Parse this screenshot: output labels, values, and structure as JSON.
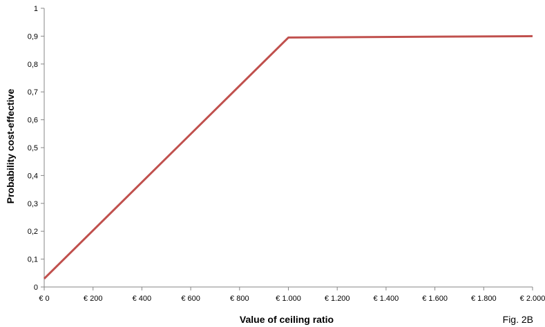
{
  "chart_data": {
    "type": "line",
    "xlabel": "Value of ceiling ratio",
    "ylabel": "Probability cost-effective",
    "figure_label": "Fig. 2B",
    "xlim": [
      0,
      2000
    ],
    "ylim": [
      0,
      1
    ],
    "x_ticks": [
      0,
      200,
      400,
      600,
      800,
      1000,
      1200,
      1400,
      1600,
      1800,
      2000
    ],
    "x_tick_labels": [
      "€ 0",
      "€ 200",
      "€ 400",
      "€ 600",
      "€ 800",
      "€ 1.000",
      "€ 1.200",
      "€ 1.400",
      "€ 1.600",
      "€ 1.800",
      "€ 2.000"
    ],
    "y_ticks": [
      0,
      0.1,
      0.2,
      0.3,
      0.4,
      0.5,
      0.6,
      0.7,
      0.8,
      0.9,
      1
    ],
    "y_tick_labels": [
      "0",
      "0,1",
      "0,2",
      "0,3",
      "0,4",
      "0,5",
      "0,6",
      "0,7",
      "0,8",
      "0,9",
      "1"
    ],
    "grid": false,
    "legend": "none",
    "series": [
      {
        "color": "#c0504d",
        "x": [
          0,
          1000,
          2000
        ],
        "y": [
          0.03,
          0.895,
          0.9
        ]
      }
    ]
  }
}
